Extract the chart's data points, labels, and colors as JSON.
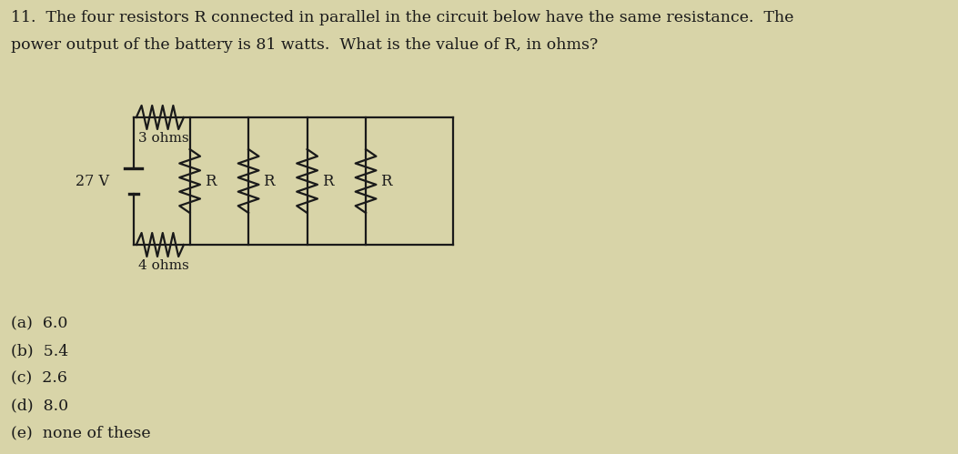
{
  "background_color": "#d8d4a8",
  "title_line1": "11.  The four resistors R connected in parallel in the circuit below have the same resistance.  The",
  "title_line2": "power output of the battery is 81 watts.  What is the value of R, in ohms?",
  "title_fontsize": 12.5,
  "options": [
    "(a)  6.0",
    "(b)  5.4",
    "(c)  2.6",
    "(d)  8.0",
    "(e)  none of these"
  ],
  "options_fontsize": 12.5,
  "battery_label": "27 V",
  "resistor_top_label": "3 ohms",
  "resistor_bottom_label": "4 ohms",
  "parallel_labels": [
    "R",
    "R",
    "R",
    "R"
  ],
  "text_color": "#1a1a1a",
  "line_color": "#1a1a1a",
  "line_width": 1.6
}
